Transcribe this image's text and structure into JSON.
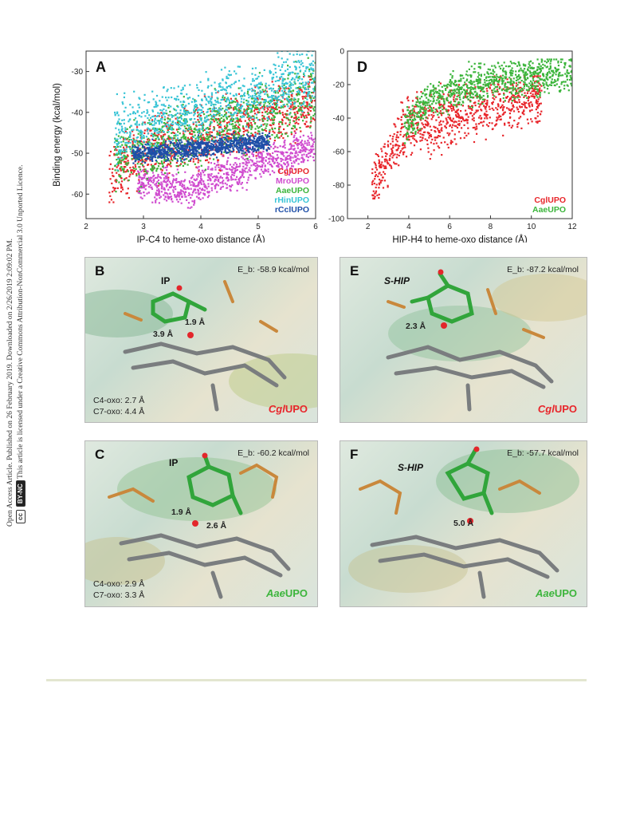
{
  "sidebar": {
    "line1": "Open Access Article. Published on 26 February 2019. Downloaded on 2/26/2019 2:09:02 PM.",
    "line2": "This article is licensed under a Creative Commons Attribution-NonCommercial 3.0 Unported Licence.",
    "badge_cc": "cc",
    "badge_by": "BY-NC"
  },
  "figure": {
    "panel_b": {
      "letter": "B",
      "energy": "E_b: -58.9 kcal/mol",
      "ligand": "IP",
      "d1": "1.9 Å",
      "d2": "3.9 Å",
      "note1": "C4-oxo: 2.7 Å",
      "note2": "C7-oxo: 4.4 Å",
      "enzyme_it": "Cgl",
      "enzyme_rest": "UPO"
    },
    "panel_c": {
      "letter": "C",
      "energy": "E_b: -60.2 kcal/mol",
      "ligand": "IP",
      "d1": "1.9 Å",
      "d2": "2.6 Å",
      "note1": "C4-oxo: 2.9 Å",
      "note2": "C7-oxo: 3.3 Å",
      "enzyme_it": "Aae",
      "enzyme_rest": "UPO"
    },
    "panel_e": {
      "letter": "E",
      "energy": "E_b: -87.2 kcal/mol",
      "ligand": "S-HIP",
      "d1": "2.3 Å",
      "enzyme_it": "Cgl",
      "enzyme_rest": "UPO"
    },
    "panel_f": {
      "letter": "F",
      "energy": "E_b: -57.7 kcal/mol",
      "ligand": "S-HIP",
      "d1": "5.0 Å",
      "enzyme_it": "Aae",
      "enzyme_rest": "UPO"
    }
  },
  "colors": {
    "cgl": "#e8262b",
    "mro": "#d04ccf",
    "aae": "#3cb53c",
    "hin": "#38c4d6",
    "ccl": "#1f4fa8"
  },
  "chart_data": [
    {
      "type": "scatter",
      "panel": "A",
      "xlabel": "IP-C4 to heme-oxo distance (Å)",
      "ylabel": "Binding energy (kcal/mol)",
      "xlim": [
        2,
        6
      ],
      "ylim": [
        -66,
        -25
      ],
      "xticks": [
        2,
        3,
        4,
        5,
        6
      ],
      "yticks": [
        -30,
        -40,
        -50,
        -60
      ],
      "legend_position": "bottom-right",
      "series": [
        {
          "name": "CglUPO",
          "color": "#e8262b",
          "x_range": [
            2.4,
            6.0
          ],
          "y_range": [
            -62,
            -28
          ],
          "trend": [
            [
              2.4,
              -56
            ],
            [
              3.0,
              -50
            ],
            [
              4.0,
              -46
            ],
            [
              5.0,
              -42
            ],
            [
              6.0,
              -38
            ]
          ]
        },
        {
          "name": "MroUPO",
          "color": "#d04ccf",
          "x_range": [
            2.9,
            6.0
          ],
          "y_range": [
            -64,
            -45
          ],
          "trend": [
            [
              3.0,
              -57
            ],
            [
              3.8,
              -59
            ],
            [
              4.5,
              -55
            ],
            [
              5.5,
              -50
            ],
            [
              6.0,
              -48
            ]
          ]
        },
        {
          "name": "AaeUPO",
          "color": "#3cb53c",
          "x_range": [
            2.5,
            6.0
          ],
          "y_range": [
            -60,
            -25
          ],
          "trend": [
            [
              2.6,
              -52
            ],
            [
              3.5,
              -47
            ],
            [
              4.5,
              -43
            ],
            [
              5.5,
              -38
            ],
            [
              6.0,
              -35
            ]
          ]
        },
        {
          "name": "rHinUPO",
          "color": "#38c4d6",
          "x_range": [
            2.5,
            6.0
          ],
          "y_range": [
            -58,
            -25
          ],
          "trend": [
            [
              2.6,
              -45
            ],
            [
              3.5,
              -41
            ],
            [
              4.5,
              -37
            ],
            [
              5.5,
              -33
            ],
            [
              6.0,
              -31
            ]
          ]
        },
        {
          "name": "rCclUPO",
          "color": "#1f4fa8",
          "x_range": [
            2.8,
            5.2
          ],
          "y_range": [
            -55,
            -45
          ],
          "trend": [
            [
              3.0,
              -50
            ],
            [
              3.8,
              -49
            ],
            [
              4.5,
              -48
            ],
            [
              5.2,
              -47
            ]
          ]
        }
      ]
    },
    {
      "type": "scatter",
      "panel": "D",
      "xlabel": "HIP-H4 to heme-oxo distance (Å)",
      "ylabel": "",
      "xlim": [
        1,
        12
      ],
      "ylim": [
        -100,
        0
      ],
      "xticks": [
        2,
        4,
        6,
        8,
        10,
        12
      ],
      "yticks": [
        0,
        -20,
        -40,
        -60,
        -80,
        -100
      ],
      "legend_position": "bottom-right",
      "series": [
        {
          "name": "CglUPO",
          "color": "#e8262b",
          "x_range": [
            2.2,
            10.5
          ],
          "y_range": [
            -88,
            -15
          ],
          "trend": [
            [
              2.3,
              -80
            ],
            [
              3.0,
              -62
            ],
            [
              4.0,
              -45
            ],
            [
              5.0,
              -42
            ],
            [
              6.5,
              -38
            ],
            [
              8.0,
              -33
            ],
            [
              10.0,
              -28
            ]
          ]
        },
        {
          "name": "AaeUPO",
          "color": "#3cb53c",
          "x_range": [
            3.8,
            12.0
          ],
          "y_range": [
            -55,
            -5
          ],
          "trend": [
            [
              3.9,
              -45
            ],
            [
              5.0,
              -30
            ],
            [
              6.0,
              -24
            ],
            [
              8.0,
              -18
            ],
            [
              10.0,
              -15
            ],
            [
              12.0,
              -13
            ]
          ]
        }
      ]
    }
  ]
}
